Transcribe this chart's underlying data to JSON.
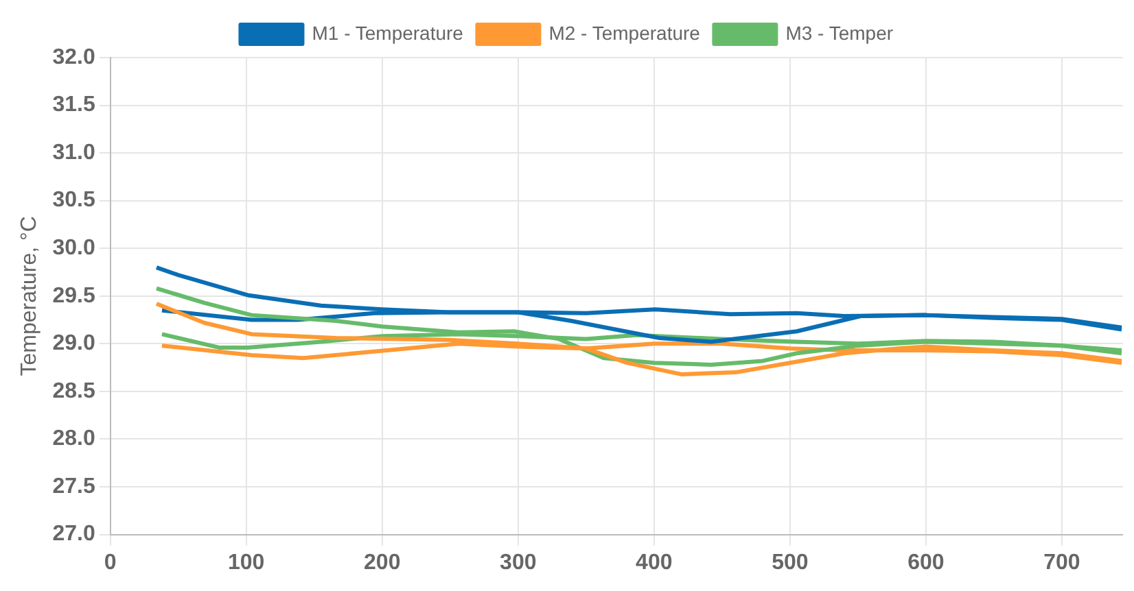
{
  "chart_data": {
    "type": "line",
    "ylabel": "Temperature, °C",
    "xlim": [
      0,
      745
    ],
    "xticks": [
      0,
      100,
      200,
      300,
      400,
      500,
      600,
      700
    ],
    "ylim": [
      27,
      32
    ],
    "yticks": [
      {
        "value": 27,
        "label": "27.0"
      },
      {
        "value": 27.5,
        "label": "27.5"
      },
      {
        "value": 28,
        "label": "28.0"
      },
      {
        "value": 28.5,
        "label": "28.5"
      },
      {
        "value": 29,
        "label": "29.0"
      },
      {
        "value": 29.5,
        "label": "29.5"
      },
      {
        "value": 30,
        "label": "30.0"
      },
      {
        "value": 30.5,
        "label": "30.5"
      },
      {
        "value": 31,
        "label": "31.0"
      },
      {
        "value": 31.5,
        "label": "31.5"
      },
      {
        "value": 32,
        "label": "32.0"
      }
    ],
    "grid": true,
    "legend": "top",
    "marker": "none",
    "line_style": "solid",
    "series": [
      {
        "name": "M1 - Temperature",
        "color": "#0a6eb4",
        "x": [
          34,
          50,
          101,
          155,
          200,
          249,
          300,
          339,
          404,
          442,
          505,
          552,
          600,
          650,
          700,
          744
        ],
        "values": [
          29.8,
          29.72,
          29.51,
          29.4,
          29.36,
          29.33,
          29.33,
          29.24,
          29.06,
          29.02,
          29.13,
          29.29,
          29.3,
          29.27,
          29.25,
          29.15
        ]
      },
      {
        "name": "M2 - Temperature",
        "color": "#ff9933",
        "x": [
          34,
          69,
          104,
          166,
          249,
          300,
          350,
          380,
          420,
          460,
          500,
          540,
          580,
          600,
          650,
          700,
          744
        ],
        "values": [
          29.42,
          29.22,
          29.1,
          29.06,
          29.04,
          29.0,
          28.95,
          28.8,
          28.68,
          28.7,
          28.8,
          28.9,
          28.95,
          28.97,
          28.93,
          28.9,
          28.82
        ]
      },
      {
        "name": "M3 - Temper",
        "color": "#66bb6a",
        "x": [
          34,
          69,
          104,
          166,
          200,
          256,
          297,
          330,
          363,
          400,
          442,
          480,
          505,
          550,
          600,
          650,
          700,
          744
        ],
        "values": [
          29.58,
          29.43,
          29.3,
          29.24,
          29.18,
          29.12,
          29.13,
          29.05,
          28.85,
          28.8,
          28.78,
          28.82,
          28.9,
          28.98,
          29.02,
          29.0,
          28.98,
          28.9
        ]
      },
      {
        "color": "#0a6eb4",
        "x": [
          38,
          104,
          138,
          194,
          249,
          300,
          350,
          401,
          456,
          505,
          540,
          600,
          650,
          700,
          744
        ],
        "values": [
          29.35,
          29.25,
          29.25,
          29.32,
          29.33,
          29.33,
          29.32,
          29.36,
          29.31,
          29.32,
          29.29,
          29.3,
          29.28,
          29.26,
          29.17
        ]
      },
      {
        "color": "#ff9933",
        "x": [
          38,
          104,
          142,
          180,
          256,
          300,
          350,
          400,
          450,
          500,
          540,
          600,
          650,
          700,
          744
        ],
        "values": [
          28.98,
          28.88,
          28.85,
          28.9,
          29.0,
          28.97,
          28.95,
          29.0,
          29.0,
          28.95,
          28.93,
          28.93,
          28.92,
          28.88,
          28.8
        ]
      },
      {
        "color": "#66bb6a",
        "x": [
          38,
          80,
          101,
          155,
          200,
          256,
          300,
          350,
          387,
          450,
          505,
          550,
          600,
          650,
          700,
          744
        ],
        "values": [
          29.1,
          28.96,
          28.96,
          29.02,
          29.08,
          29.1,
          29.08,
          29.05,
          29.09,
          29.05,
          29.02,
          29.0,
          29.03,
          29.02,
          28.98,
          28.93
        ]
      }
    ]
  }
}
